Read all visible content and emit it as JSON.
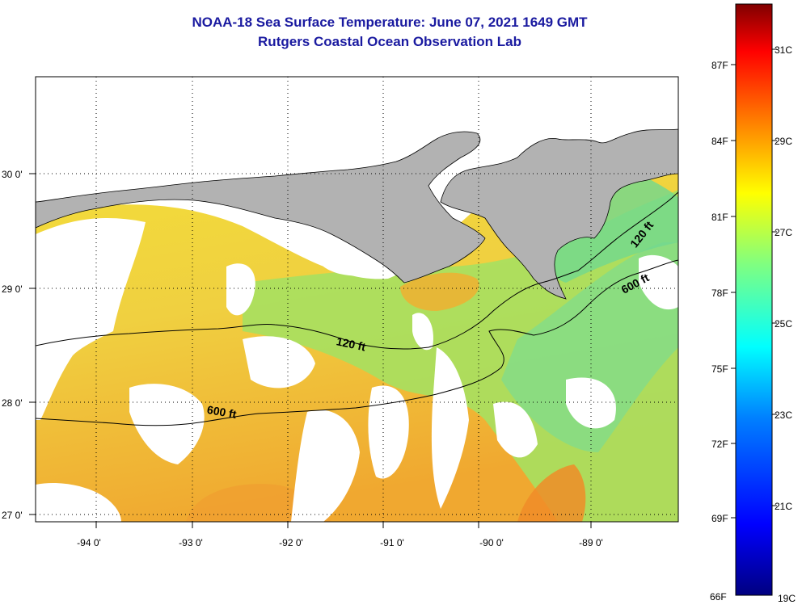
{
  "title": {
    "line1": "NOAA-18 Sea Surface Temperature:  June 07, 2021 1649 GMT",
    "line2": "Rutgers Coastal Ocean Observation Lab"
  },
  "map": {
    "lon_range": [
      -94.6,
      -88.3
    ],
    "lat_range": [
      26.94,
      30.86
    ],
    "lon_ticks": [
      {
        "value": -94,
        "label": "-94 0'"
      },
      {
        "value": -93,
        "label": "-93 0'"
      },
      {
        "value": -92,
        "label": "-92 0'"
      },
      {
        "value": -91,
        "label": "-91 0'"
      },
      {
        "value": -90,
        "label": "-90 0'"
      },
      {
        "value": -89,
        "label": "-89 0'"
      }
    ],
    "lat_ticks": [
      {
        "value": 30,
        "label": "30 0'"
      },
      {
        "value": 29,
        "label": "29 0'"
      },
      {
        "value": 28,
        "label": "28 0'"
      },
      {
        "value": 27,
        "label": "27 0'"
      }
    ],
    "grid": "dotted",
    "land_color": "#b2b2b2",
    "cloud_color": "#ffffff",
    "contours": [
      {
        "label": "120 ft"
      },
      {
        "label": "600 ft"
      }
    ]
  },
  "colorbar": {
    "f_ticks": [
      "87F",
      "84F",
      "81F",
      "78F",
      "75F",
      "72F",
      "69F",
      "66F"
    ],
    "c_ticks": [
      "31C",
      "29C",
      "27C",
      "25C",
      "23C",
      "21C",
      "19C"
    ],
    "colors": [
      "#000080",
      "#0000ff",
      "#0080ff",
      "#00ffff",
      "#80ff80",
      "#ffff00",
      "#ff8000",
      "#ff0000",
      "#800000"
    ]
  }
}
